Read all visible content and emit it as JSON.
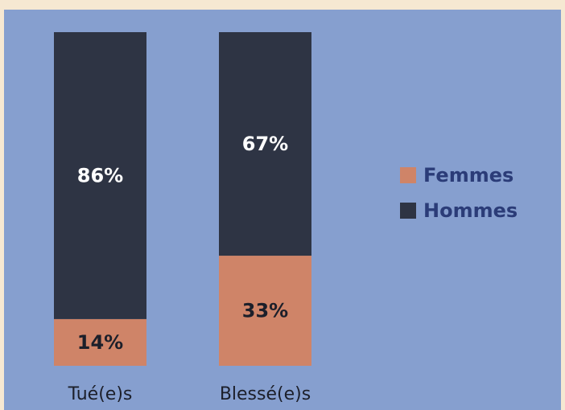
{
  "chart_data": {
    "type": "bar",
    "stacked": true,
    "categories": [
      "Tué(e)s",
      "Blessé(e)s"
    ],
    "series": [
      {
        "name": "Femmes",
        "color": "#cf8468",
        "values": [
          14,
          33
        ],
        "value_labels": [
          "14%",
          "33%"
        ]
      },
      {
        "name": "Hommes",
        "color": "#2e3444",
        "values": [
          86,
          67
        ],
        "value_labels": [
          "86%",
          "67%"
        ]
      }
    ],
    "legend": "right"
  }
}
